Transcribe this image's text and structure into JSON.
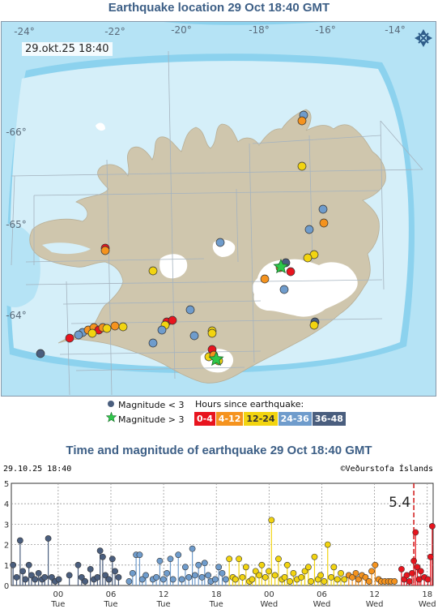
{
  "map": {
    "title": "Earthquake location   29 Oct 18:40 GMT",
    "timestamp": "29.okt.25  18:40",
    "lon_labels": [
      "-24°",
      "-22°",
      "-20°",
      "-18°",
      "-16°",
      "-14°"
    ],
    "lat_labels": [
      "-66°",
      "-65°",
      "-64°"
    ],
    "colors": {
      "deep_ocean": "#8cd2ee",
      "mid_ocean": "#b5e3f5",
      "shallow_ocean": "#d5eff9",
      "land": "#cfc6ad",
      "glacier": "#ffffff",
      "grid": "#a5b3bf"
    },
    "compass_icon": "compass-arrows-icon"
  },
  "legend": {
    "small_label": "Magnitude < 3",
    "large_label": "Magnitude > 3",
    "hours_title": "Hours since earthquake:",
    "hours": [
      {
        "label": "0-4",
        "color": "#e8141e",
        "text": "#ffffff"
      },
      {
        "label": "4-12",
        "color": "#f5931e",
        "text": "#ffffff"
      },
      {
        "label": "12-24",
        "color": "#f2d410",
        "text": "#333333"
      },
      {
        "label": "24-36",
        "color": "#6f9ccc",
        "text": "#ffffff"
      },
      {
        "label": "36-48",
        "color": "#4a5e7e",
        "text": "#ffffff"
      }
    ]
  },
  "chart": {
    "title": "Time and magnitude of earthquake   29 Oct 18:40 GMT",
    "header_left": "29.10.25 18:40",
    "header_right": "©Veðurstofa Íslands",
    "peak_label": "5.4"
  },
  "chart_data": {
    "type": "scatter",
    "title": "Time and magnitude of earthquake   29 Oct 18:40 GMT",
    "xlabel": "",
    "ylabel": "",
    "ylim": [
      0,
      5
    ],
    "yticks": [
      0,
      1,
      2,
      3,
      4,
      5
    ],
    "x_unit": "hours before 29.10.25 18:40",
    "xlim": [
      -48,
      0
    ],
    "xticks": [
      {
        "x": -42.67,
        "label": "00",
        "day": "Tue"
      },
      {
        "x": -36.67,
        "label": "06",
        "day": "Tue"
      },
      {
        "x": -30.67,
        "label": "12",
        "day": "Tue"
      },
      {
        "x": -24.67,
        "label": "18",
        "day": "Tue"
      },
      {
        "x": -18.67,
        "label": "00",
        "day": "Wed"
      },
      {
        "x": -12.67,
        "label": "06",
        "day": "Wed"
      },
      {
        "x": -6.67,
        "label": "12",
        "day": "Wed"
      },
      {
        "x": -0.67,
        "label": "18",
        "day": "Wed"
      }
    ],
    "grid": true,
    "largest_event": {
      "x": -2.2,
      "magnitude": 5.4
    },
    "series": [
      {
        "color": "#4a5e7e",
        "points": [
          [
            -47.8,
            1.0
          ],
          [
            -47.4,
            0.4
          ],
          [
            -47.0,
            2.2
          ],
          [
            -46.7,
            0.7
          ],
          [
            -46.4,
            0.3
          ],
          [
            -46.0,
            1.0
          ],
          [
            -45.7,
            0.5
          ],
          [
            -45.3,
            0.3
          ],
          [
            -44.9,
            0.6
          ],
          [
            -44.5,
            0.3
          ],
          [
            -44.2,
            0.4
          ],
          [
            -43.8,
            2.3
          ],
          [
            -43.4,
            0.4
          ],
          [
            -43.0,
            0.2
          ],
          [
            -42.6,
            0.3
          ],
          [
            -41.4,
            0.5
          ],
          [
            -40.4,
            1.0
          ],
          [
            -40.0,
            0.4
          ],
          [
            -39.6,
            0.2
          ],
          [
            -39.0,
            0.8
          ],
          [
            -38.6,
            0.3
          ],
          [
            -38.2,
            0.4
          ],
          [
            -37.9,
            1.7
          ],
          [
            -37.6,
            1.4
          ],
          [
            -37.3,
            0.5
          ],
          [
            -36.9,
            0.3
          ],
          [
            -36.5,
            1.3
          ],
          [
            -36.2,
            0.7
          ],
          [
            -35.8,
            0.4
          ]
        ]
      },
      {
        "color": "#6f9ccc",
        "points": [
          [
            -34.6,
            0.2
          ],
          [
            -34.2,
            0.6
          ],
          [
            -33.8,
            1.5
          ],
          [
            -33.4,
            1.5
          ],
          [
            -33.1,
            0.3
          ],
          [
            -32.7,
            0.5
          ],
          [
            -31.9,
            0.3
          ],
          [
            -31.5,
            0.4
          ],
          [
            -31.1,
            1.2
          ],
          [
            -30.7,
            0.3
          ],
          [
            -30.3,
            0.6
          ],
          [
            -29.9,
            1.3
          ],
          [
            -29.6,
            0.3
          ],
          [
            -29.0,
            1.5
          ],
          [
            -28.6,
            0.3
          ],
          [
            -28.2,
            0.9
          ],
          [
            -27.8,
            0.4
          ],
          [
            -27.4,
            1.8
          ],
          [
            -27.1,
            0.5
          ],
          [
            -26.7,
            1.0
          ],
          [
            -26.3,
            0.4
          ],
          [
            -26.0,
            1.1
          ],
          [
            -25.6,
            0.5
          ],
          [
            -25.3,
            0.2
          ],
          [
            -24.8,
            0.3
          ],
          [
            -24.4,
            0.9
          ],
          [
            -24.0,
            0.6
          ],
          [
            -23.6,
            0.3
          ]
        ]
      },
      {
        "color": "#f2d410",
        "points": [
          [
            -23.2,
            1.3
          ],
          [
            -22.8,
            0.4
          ],
          [
            -22.5,
            0.3
          ],
          [
            -22.1,
            1.3
          ],
          [
            -21.7,
            0.4
          ],
          [
            -21.3,
            0.9
          ],
          [
            -20.9,
            0.2
          ],
          [
            -20.6,
            0.3
          ],
          [
            -20.2,
            0.7
          ],
          [
            -19.8,
            0.5
          ],
          [
            -19.5,
            1.0
          ],
          [
            -19.1,
            0.4
          ],
          [
            -18.7,
            0.7
          ],
          [
            -18.4,
            3.2
          ],
          [
            -18.0,
            0.5
          ],
          [
            -17.6,
            1.3
          ],
          [
            -17.2,
            0.3
          ],
          [
            -16.9,
            0.4
          ],
          [
            -16.6,
            1.0
          ],
          [
            -16.3,
            0.2
          ],
          [
            -15.9,
            0.6
          ],
          [
            -15.5,
            0.3
          ],
          [
            -15.0,
            0.4
          ],
          [
            -14.6,
            0.7
          ],
          [
            -14.2,
            0.9
          ],
          [
            -13.9,
            0.2
          ],
          [
            -13.5,
            1.4
          ],
          [
            -13.1,
            0.3
          ],
          [
            -12.8,
            0.5
          ],
          [
            -12.4,
            0.2
          ],
          [
            -12.0,
            2.0
          ],
          [
            -11.6,
            0.4
          ],
          [
            -11.3,
            0.9
          ],
          [
            -10.9,
            0.3
          ],
          [
            -10.5,
            0.6
          ],
          [
            -10.1,
            0.3
          ]
        ]
      },
      {
        "color": "#f5931e",
        "points": [
          [
            -9.6,
            0.5
          ],
          [
            -9.2,
            0.4
          ],
          [
            -8.8,
            0.6
          ],
          [
            -8.5,
            0.3
          ],
          [
            -8.1,
            0.5
          ],
          [
            -7.7,
            0.4
          ],
          [
            -7.3,
            0.2
          ],
          [
            -7.0,
            0.7
          ],
          [
            -6.6,
            1.0
          ],
          [
            -6.2,
            0.3
          ],
          [
            -5.9,
            0.2
          ],
          [
            -5.5,
            0.2
          ],
          [
            -5.1,
            0.2
          ],
          [
            -4.8,
            0.2
          ],
          [
            -4.4,
            0.2
          ]
        ]
      },
      {
        "color": "#e8141e",
        "points": [
          [
            -3.6,
            0.8
          ],
          [
            -3.3,
            0.3
          ],
          [
            -3.0,
            0.5
          ],
          [
            -2.7,
            0.2
          ],
          [
            -2.4,
            0.6
          ],
          [
            -2.2,
            1.2
          ],
          [
            -2.0,
            2.6
          ],
          [
            -1.8,
            0.9
          ],
          [
            -1.6,
            0.3
          ],
          [
            -1.4,
            0.7
          ],
          [
            -1.0,
            0.4
          ],
          [
            -0.6,
            0.3
          ],
          [
            -0.3,
            1.4
          ],
          [
            -0.1,
            2.9
          ]
        ]
      }
    ]
  }
}
